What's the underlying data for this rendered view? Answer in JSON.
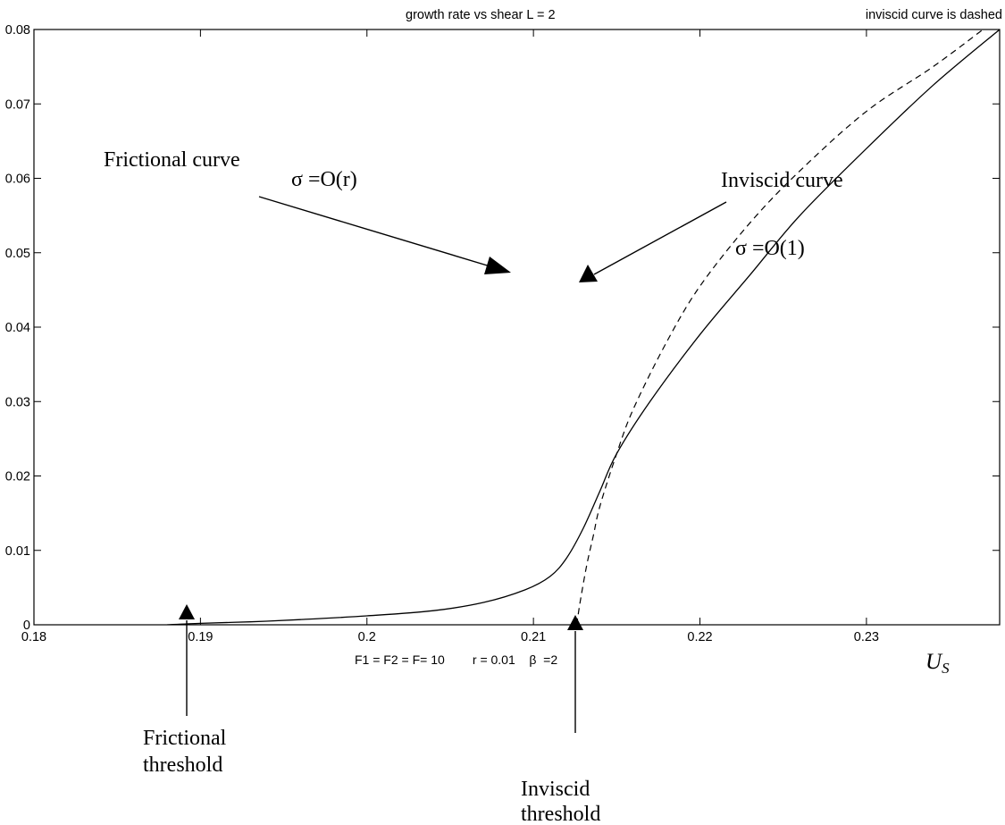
{
  "chart_data": {
    "type": "line",
    "title": "growth rate vs shear  L = 2",
    "title_right": "inviscid curve is dashed",
    "xlabel_main": "U",
    "xlabel_sub": "S",
    "xlim": [
      0.18,
      0.238
    ],
    "ylim": [
      0,
      0.08
    ],
    "x_ticks": [
      0.18,
      0.19,
      0.2,
      0.21,
      0.22,
      0.23
    ],
    "x_tick_labels": [
      "0.18",
      "0.19",
      "0.2",
      "0.21",
      "0.22",
      "0.23"
    ],
    "y_ticks": [
      0,
      0.01,
      0.02,
      0.03,
      0.04,
      0.05,
      0.06,
      0.07,
      0.08
    ],
    "y_tick_labels": [
      "0",
      "0.01",
      "0.02",
      "0.03",
      "0.04",
      "0.05",
      "0.06",
      "0.07",
      "0.08"
    ],
    "parameters_text": "F1 = F2 = F= 10        r = 0.01    β  =2",
    "grid": false,
    "series": [
      {
        "style": "solid",
        "points": [
          [
            0.188,
            0.0
          ],
          [
            0.19,
            0.0002
          ],
          [
            0.193,
            0.0004
          ],
          [
            0.196,
            0.0007
          ],
          [
            0.2,
            0.0012
          ],
          [
            0.204,
            0.0019
          ],
          [
            0.207,
            0.003
          ],
          [
            0.2095,
            0.0047
          ],
          [
            0.211,
            0.0065
          ],
          [
            0.212,
            0.009
          ],
          [
            0.213,
            0.013
          ],
          [
            0.214,
            0.018
          ],
          [
            0.215,
            0.023
          ],
          [
            0.217,
            0.03
          ],
          [
            0.22,
            0.039
          ],
          [
            0.223,
            0.047
          ],
          [
            0.226,
            0.055
          ],
          [
            0.23,
            0.064
          ],
          [
            0.234,
            0.0725
          ],
          [
            0.238,
            0.08
          ]
        ]
      },
      {
        "style": "dashed",
        "points": [
          [
            0.2126,
            0.0
          ],
          [
            0.2128,
            0.003
          ],
          [
            0.2132,
            0.008
          ],
          [
            0.2136,
            0.012
          ],
          [
            0.214,
            0.016
          ],
          [
            0.215,
            0.023
          ],
          [
            0.216,
            0.029
          ],
          [
            0.218,
            0.038
          ],
          [
            0.22,
            0.0455
          ],
          [
            0.223,
            0.054
          ],
          [
            0.226,
            0.061
          ],
          [
            0.23,
            0.069
          ],
          [
            0.234,
            0.075
          ],
          [
            0.237,
            0.08
          ]
        ]
      }
    ],
    "annotations": [
      {
        "text": "Frictional curve",
        "arrow_to": [
          0.2093,
          0.004
        ]
      },
      {
        "text": "σ =O(r)"
      },
      {
        "text": "Inviscid curve",
        "arrow_to": [
          0.2135,
          0.0107
        ]
      },
      {
        "text": "σ =O(1)"
      },
      {
        "text": "Frictional",
        "text2": "threshold",
        "arrow_to": [
          0.188,
          0.0
        ]
      },
      {
        "text": "Inviscid",
        "text2": "threshold",
        "arrow_to": [
          0.2126,
          0.0
        ]
      }
    ]
  }
}
